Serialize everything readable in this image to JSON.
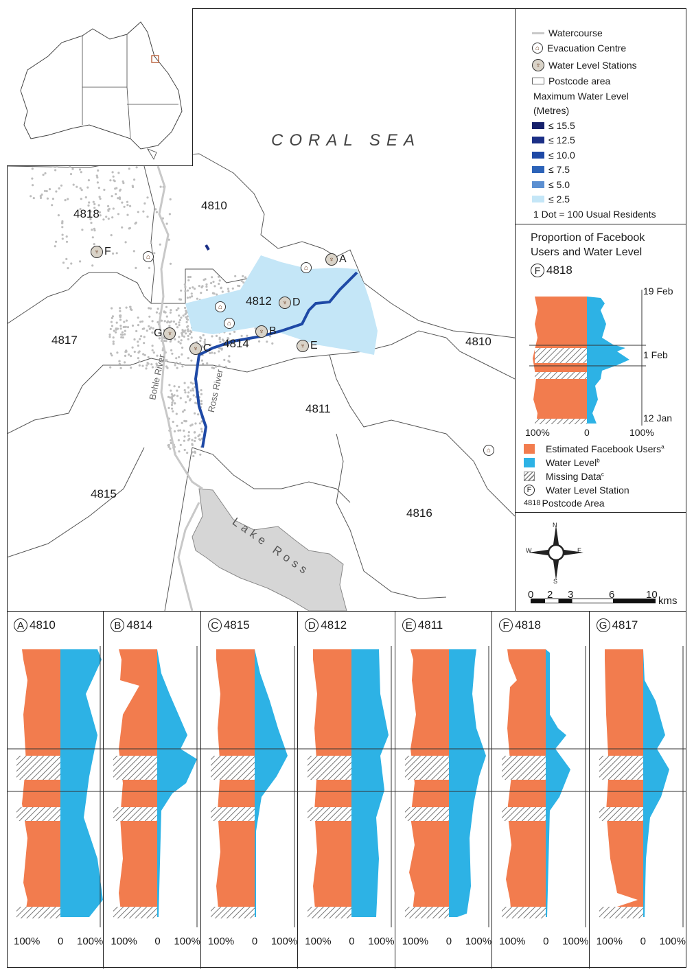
{
  "colors": {
    "facebook": "#f27c4e",
    "water": "#2db2e5",
    "watercourse": "#c8c8c8",
    "dots": "#bdbdbd",
    "lake": "#d6d6d6",
    "wl_15_5": "#16206b",
    "wl_12_5": "#1b2f86",
    "wl_10_0": "#1e49a6",
    "wl_7_5": "#2c63b8",
    "wl_5_0": "#5b8fd1",
    "wl_2_5": "#c4e6f7"
  },
  "map": {
    "sea_label": "CORAL SEA",
    "lake_label": "Lake Ross",
    "rivers": [
      "Bohle River",
      "Ross River"
    ],
    "postcodes": [
      "4818",
      "4810",
      "4817",
      "4814",
      "4812",
      "4810",
      "4811",
      "4815",
      "4816"
    ],
    "stations": [
      "A",
      "B",
      "C",
      "D",
      "E",
      "F",
      "G"
    ]
  },
  "legend": {
    "watercourse": "Watercourse",
    "evac": "Evacuation Centre",
    "stations": "Water Level Stations",
    "postcode": "Postcode area",
    "max_wl_title_1": "Maximum Water Level",
    "max_wl_title_2": "(Metres)",
    "levels": [
      "≤ 15.5",
      "≤ 12.5",
      "≤ 10.0",
      "≤ 7.5",
      "≤ 5.0",
      "≤ 2.5"
    ],
    "dot": "1 Dot = 100 Usual Residents"
  },
  "proportion_panel": {
    "title_1": "Proportion of Facebook",
    "title_2": "Users and Water Level",
    "station": "F",
    "postcode": "4818",
    "date_top": "19 Feb",
    "date_mid": "1 Feb",
    "date_bottom": "12 Jan",
    "axis_left": "100%",
    "axis_mid": "0",
    "axis_right": "100%",
    "key_facebook": "Estimated Facebook Users",
    "key_facebook_sup": "a",
    "key_water": "Water Level",
    "key_water_sup": "b",
    "key_missing": "Missing Data",
    "key_missing_sup": "c",
    "key_station_letter": "F",
    "key_station": "Water Level Station",
    "key_postcode_code": "4818",
    "key_postcode": "Postcode Area"
  },
  "scale": {
    "ticks": [
      "0",
      "2",
      "3",
      "6",
      "10"
    ],
    "unit": "kms",
    "north": "N",
    "south": "S",
    "east": "E",
    "west": "W"
  },
  "charts": [
    {
      "letter": "A",
      "postcode": "4810"
    },
    {
      "letter": "B",
      "postcode": "4814"
    },
    {
      "letter": "C",
      "postcode": "4815"
    },
    {
      "letter": "D",
      "postcode": "4812"
    },
    {
      "letter": "E",
      "postcode": "4811"
    },
    {
      "letter": "F",
      "postcode": "4818"
    },
    {
      "letter": "G",
      "postcode": "4817"
    }
  ],
  "chart_axis": {
    "left": "100%",
    "mid": "0",
    "right": "100%"
  }
}
